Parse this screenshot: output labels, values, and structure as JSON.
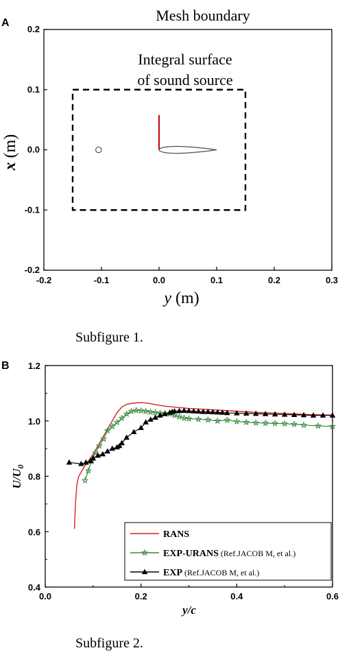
{
  "figure": {
    "panel_a_letter": "A",
    "panel_b_letter": "B",
    "caption_1": "Subfigure 1.",
    "caption_2": "Subfigure 2."
  },
  "chart_data": [
    {
      "type": "diagram",
      "title": "Mesh boundary",
      "annotation_line1": "Integral surface",
      "annotation_line2": "of sound source",
      "xlabel_var": "y",
      "xlabel_unit": " (m)",
      "ylabel_var": "x",
      "ylabel_unit": " (m)",
      "xlim": [
        -0.2,
        0.3
      ],
      "ylim": [
        -0.2,
        0.2
      ],
      "xticks": [
        -0.2,
        -0.1,
        0.0,
        0.1,
        0.2,
        0.3
      ],
      "xtick_labels": [
        "-0.2",
        "-0.1",
        "0.0",
        "0.1",
        "0.2",
        "0.3"
      ],
      "yticks": [
        -0.2,
        -0.1,
        0.0,
        0.1,
        0.2
      ],
      "ytick_labels": [
        "-0.2",
        "-0.1",
        "0.0",
        "0.1",
        "0.2"
      ],
      "integral_surface": {
        "y": [
          -0.15,
          0.15
        ],
        "x": [
          -0.1,
          0.1
        ]
      },
      "rod": {
        "y": -0.105,
        "x": 0.0,
        "radius": 0.005
      },
      "airfoil": {
        "leading_edge_y": 0.0,
        "trailing_edge_y": 0.1,
        "x": 0.0
      },
      "line_segment": {
        "y": 0.0,
        "x": [
          0.0,
          0.058
        ],
        "color": "#cc0000"
      }
    },
    {
      "type": "line",
      "xlabel": "y/c",
      "ylabel_var": "U",
      "ylabel_den": "U",
      "ylabel_sub": "0",
      "xlim": [
        0.0,
        0.6
      ],
      "ylim": [
        0.4,
        1.2
      ],
      "xticks": [
        0.0,
        0.2,
        0.4,
        0.6
      ],
      "xtick_labels": [
        "0.0",
        "0.2",
        "0.4",
        "0.6"
      ],
      "yticks": [
        0.4,
        0.6,
        0.8,
        1.0,
        1.2
      ],
      "ytick_labels": [
        "0.4",
        "0.6",
        "0.8",
        "1.0",
        "1.2"
      ],
      "legend_position": "bottom-right",
      "series": [
        {
          "name": "RANS",
          "note": "",
          "color": "#d62020",
          "marker": "none",
          "x": [
            0.061,
            0.063,
            0.066,
            0.07,
            0.075,
            0.08,
            0.09,
            0.1,
            0.11,
            0.12,
            0.13,
            0.14,
            0.15,
            0.16,
            0.17,
            0.18,
            0.19,
            0.2,
            0.21,
            0.22,
            0.25,
            0.3,
            0.35,
            0.4,
            0.45,
            0.5,
            0.55,
            0.6
          ],
          "y": [
            0.61,
            0.7,
            0.77,
            0.8,
            0.815,
            0.83,
            0.855,
            0.88,
            0.91,
            0.94,
            0.97,
            1.0,
            1.03,
            1.05,
            1.06,
            1.063,
            1.065,
            1.066,
            1.065,
            1.062,
            1.053,
            1.045,
            1.04,
            1.035,
            1.03,
            1.027,
            1.023,
            1.021
          ]
        },
        {
          "name": "EXP-URANS",
          "note": "(Ref.JACOB M, et al.)",
          "color": "#3a8a3a",
          "marker": "star",
          "x": [
            0.083,
            0.09,
            0.097,
            0.105,
            0.113,
            0.122,
            0.13,
            0.14,
            0.15,
            0.16,
            0.17,
            0.18,
            0.19,
            0.2,
            0.21,
            0.22,
            0.23,
            0.24,
            0.25,
            0.26,
            0.27,
            0.28,
            0.29,
            0.3,
            0.32,
            0.34,
            0.36,
            0.38,
            0.4,
            0.42,
            0.44,
            0.46,
            0.48,
            0.5,
            0.52,
            0.54,
            0.57,
            0.6
          ],
          "y": [
            0.785,
            0.82,
            0.855,
            0.885,
            0.91,
            0.935,
            0.965,
            0.98,
            0.995,
            1.01,
            1.025,
            1.035,
            1.038,
            1.037,
            1.035,
            1.032,
            1.03,
            1.028,
            1.027,
            1.025,
            1.02,
            1.015,
            1.01,
            1.008,
            1.006,
            1.004,
            1.0,
            1.003,
            0.998,
            0.995,
            0.993,
            0.992,
            0.991,
            0.99,
            0.988,
            0.985,
            0.982,
            0.98
          ]
        },
        {
          "name": "EXP",
          "note": "(Ref.JACOB M, et al.)",
          "color": "#000000",
          "marker": "triangle",
          "x": [
            0.05,
            0.075,
            0.085,
            0.095,
            0.1,
            0.11,
            0.12,
            0.13,
            0.14,
            0.15,
            0.155,
            0.16,
            0.17,
            0.185,
            0.2,
            0.21,
            0.22,
            0.23,
            0.24,
            0.25,
            0.26,
            0.265,
            0.27,
            0.28,
            0.29,
            0.3,
            0.31,
            0.32,
            0.33,
            0.34,
            0.35,
            0.36,
            0.37,
            0.38,
            0.4,
            0.42,
            0.44,
            0.46,
            0.48,
            0.5,
            0.52,
            0.54,
            0.56,
            0.58,
            0.6
          ],
          "y": [
            0.85,
            0.845,
            0.85,
            0.855,
            0.865,
            0.875,
            0.88,
            0.89,
            0.9,
            0.905,
            0.91,
            0.92,
            0.94,
            0.96,
            0.975,
            0.995,
            1.005,
            1.012,
            1.02,
            1.025,
            1.03,
            1.033,
            1.035,
            1.036,
            1.037,
            1.036,
            1.035,
            1.034,
            1.033,
            1.033,
            1.032,
            1.031,
            1.03,
            1.029,
            1.028,
            1.027,
            1.026,
            1.025,
            1.024,
            1.023,
            1.022,
            1.021,
            1.02,
            1.02,
            1.02
          ]
        }
      ]
    }
  ]
}
